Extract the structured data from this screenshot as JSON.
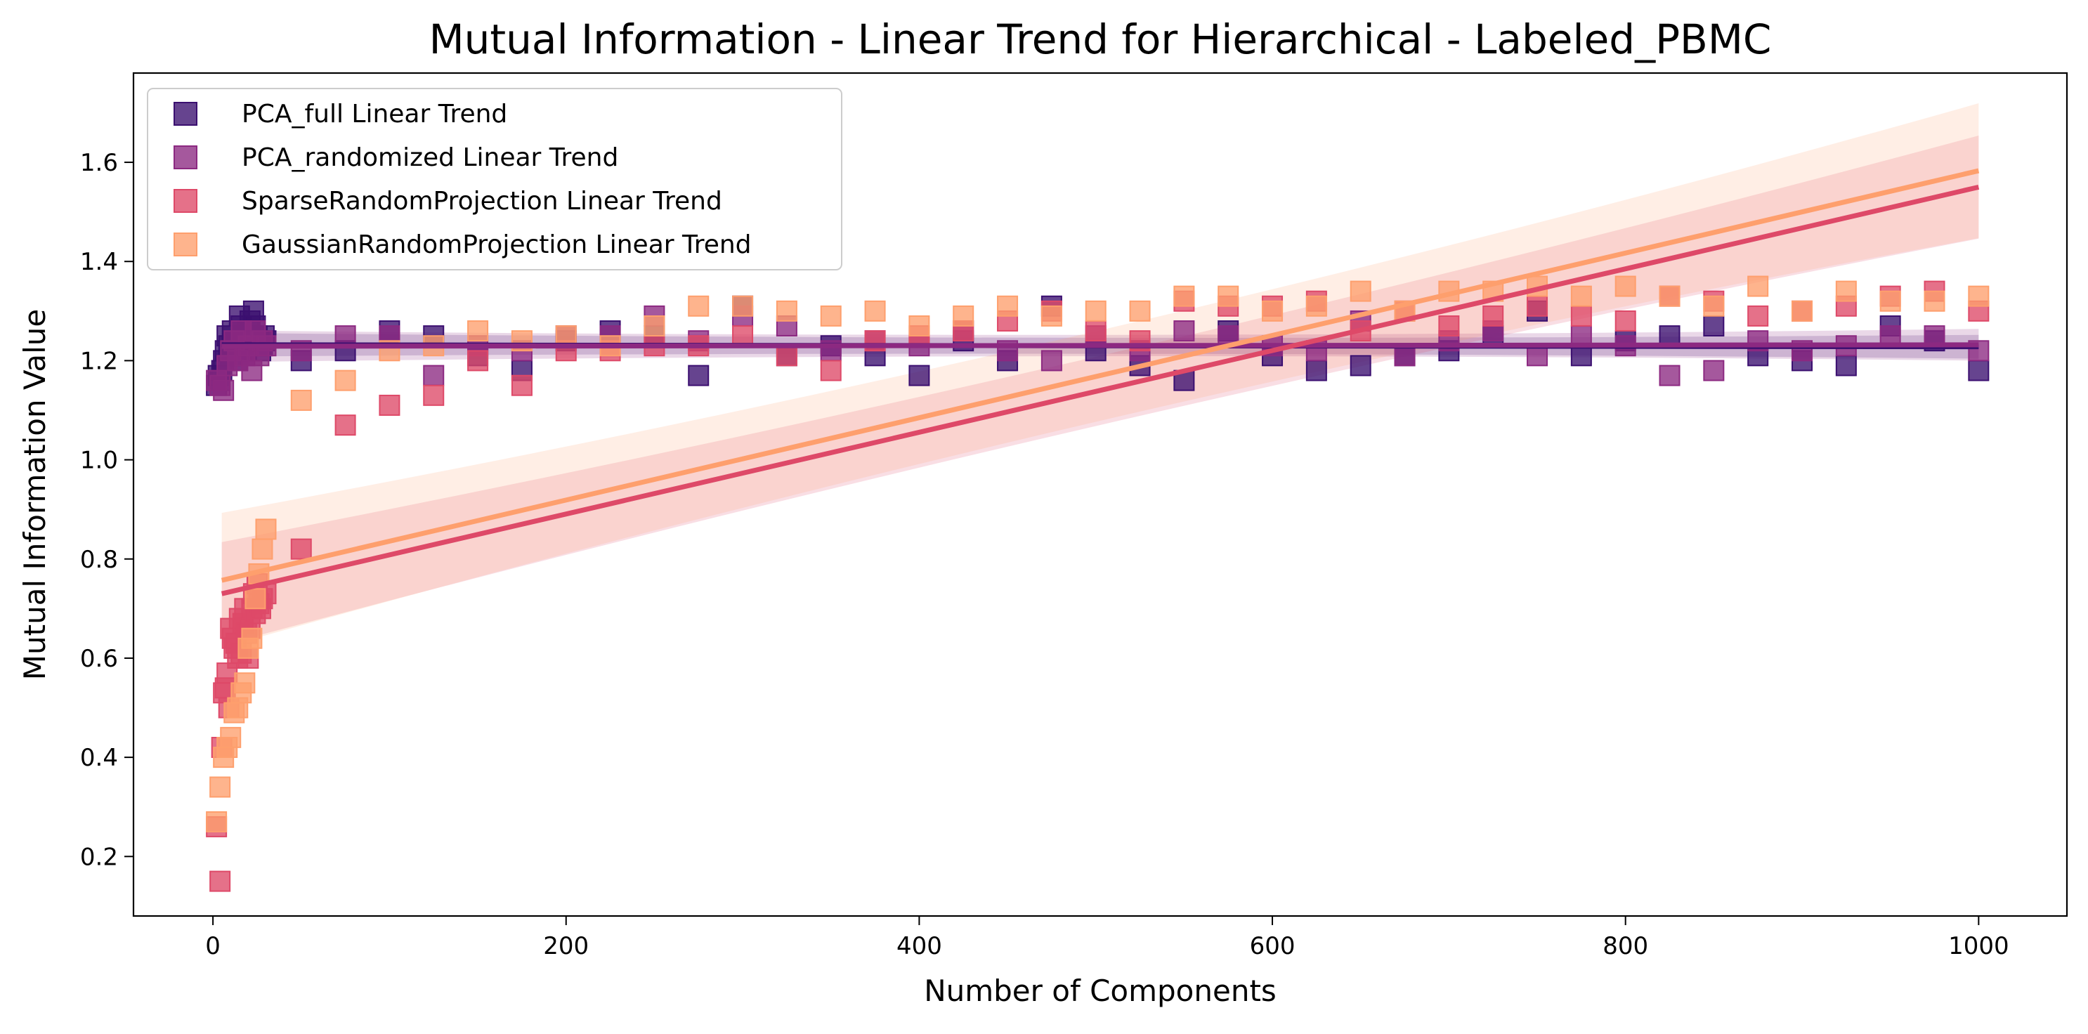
{
  "chart_data": {
    "type": "scatter",
    "title": "Mutual Information - Linear Trend for Hierarchical - Labeled_PBMC",
    "xlabel": "Number of Components",
    "ylabel": "Mutual Information Value",
    "xlim": [
      -45,
      1050
    ],
    "ylim": [
      0.08,
      1.78
    ],
    "xticks": [
      0,
      200,
      400,
      600,
      800,
      1000
    ],
    "yticks": [
      0.2,
      0.4,
      0.6,
      0.8,
      1.0,
      1.2,
      1.4,
      1.6
    ],
    "xtick_labels": [
      "0",
      "200",
      "400",
      "600",
      "800",
      "1000"
    ],
    "ytick_labels": [
      "0.2",
      "0.4",
      "0.6",
      "0.8",
      "1.0",
      "1.2",
      "1.4",
      "1.6"
    ],
    "legend_position": "upper-left",
    "grid": false,
    "series": [
      {
        "name": "PCA_full Linear Trend",
        "color": "#3b0f70",
        "points": [
          [
            2,
            1.15
          ],
          [
            3,
            1.17
          ],
          [
            4,
            1.16
          ],
          [
            5,
            1.18
          ],
          [
            6,
            1.2
          ],
          [
            7,
            1.22
          ],
          [
            8,
            1.25
          ],
          [
            9,
            1.23
          ],
          [
            10,
            1.21
          ],
          [
            11,
            1.26
          ],
          [
            12,
            1.24
          ],
          [
            13,
            1.22
          ],
          [
            14,
            1.2
          ],
          [
            15,
            1.29
          ],
          [
            16,
            1.27
          ],
          [
            17,
            1.25
          ],
          [
            18,
            1.24
          ],
          [
            19,
            1.22
          ],
          [
            20,
            1.26
          ],
          [
            21,
            1.28
          ],
          [
            22,
            1.24
          ],
          [
            23,
            1.3
          ],
          [
            24,
            1.27
          ],
          [
            25,
            1.25
          ],
          [
            26,
            1.24
          ],
          [
            27,
            1.22
          ],
          [
            28,
            1.23
          ],
          [
            29,
            1.25
          ],
          [
            30,
            1.24
          ],
          [
            50,
            1.2
          ],
          [
            75,
            1.22
          ],
          [
            100,
            1.26
          ],
          [
            125,
            1.25
          ],
          [
            150,
            1.21
          ],
          [
            175,
            1.18
          ],
          [
            200,
            1.24
          ],
          [
            225,
            1.26
          ],
          [
            250,
            1.25
          ],
          [
            275,
            1.17
          ],
          [
            300,
            1.31
          ],
          [
            325,
            1.21
          ],
          [
            350,
            1.23
          ],
          [
            375,
            1.21
          ],
          [
            400,
            1.17
          ],
          [
            425,
            1.24
          ],
          [
            450,
            1.2
          ],
          [
            475,
            1.31
          ],
          [
            500,
            1.22
          ],
          [
            525,
            1.19
          ],
          [
            550,
            1.16
          ],
          [
            575,
            1.26
          ],
          [
            600,
            1.21
          ],
          [
            625,
            1.18
          ],
          [
            650,
            1.19
          ],
          [
            675,
            1.21
          ],
          [
            700,
            1.22
          ],
          [
            725,
            1.25
          ],
          [
            750,
            1.3
          ],
          [
            775,
            1.21
          ],
          [
            800,
            1.24
          ],
          [
            825,
            1.25
          ],
          [
            850,
            1.27
          ],
          [
            875,
            1.21
          ],
          [
            900,
            1.2
          ],
          [
            925,
            1.19
          ],
          [
            950,
            1.27
          ],
          [
            975,
            1.24
          ],
          [
            1000,
            1.18
          ]
        ],
        "trend": {
          "x": [
            5,
            1000
          ],
          "y": [
            1.232,
            1.228
          ]
        },
        "band_half_width": 0.015
      },
      {
        "name": "PCA_randomized Linear Trend",
        "color": "#8c2981",
        "points": [
          [
            2,
            1.16
          ],
          [
            4,
            1.15
          ],
          [
            6,
            1.14
          ],
          [
            8,
            1.19
          ],
          [
            10,
            1.22
          ],
          [
            12,
            1.24
          ],
          [
            14,
            1.2
          ],
          [
            16,
            1.26
          ],
          [
            18,
            1.21
          ],
          [
            20,
            1.23
          ],
          [
            22,
            1.18
          ],
          [
            24,
            1.26
          ],
          [
            26,
            1.21
          ],
          [
            28,
            1.24
          ],
          [
            30,
            1.23
          ],
          [
            50,
            1.22
          ],
          [
            75,
            1.25
          ],
          [
            100,
            1.25
          ],
          [
            125,
            1.17
          ],
          [
            150,
            1.23
          ],
          [
            175,
            1.22
          ],
          [
            200,
            1.25
          ],
          [
            225,
            1.25
          ],
          [
            250,
            1.29
          ],
          [
            275,
            1.24
          ],
          [
            300,
            1.29
          ],
          [
            325,
            1.27
          ],
          [
            350,
            1.22
          ],
          [
            375,
            1.24
          ],
          [
            400,
            1.23
          ],
          [
            425,
            1.26
          ],
          [
            450,
            1.22
          ],
          [
            475,
            1.2
          ],
          [
            500,
            1.25
          ],
          [
            525,
            1.22
          ],
          [
            550,
            1.26
          ],
          [
            575,
            1.25
          ],
          [
            600,
            1.23
          ],
          [
            625,
            1.22
          ],
          [
            650,
            1.28
          ],
          [
            675,
            1.21
          ],
          [
            700,
            1.24
          ],
          [
            725,
            1.26
          ],
          [
            750,
            1.21
          ],
          [
            775,
            1.25
          ],
          [
            800,
            1.23
          ],
          [
            825,
            1.17
          ],
          [
            850,
            1.18
          ],
          [
            875,
            1.24
          ],
          [
            900,
            1.22
          ],
          [
            925,
            1.23
          ],
          [
            950,
            1.25
          ],
          [
            975,
            1.25
          ],
          [
            1000,
            1.22
          ]
        ],
        "trend": {
          "x": [
            5,
            1000
          ],
          "y": [
            1.229,
            1.232
          ]
        },
        "band_half_width": 0.02
      },
      {
        "name": "SparseRandomProjection Linear Trend",
        "color": "#de4968",
        "points": [
          [
            2,
            0.26
          ],
          [
            4,
            0.15
          ],
          [
            5,
            0.42
          ],
          [
            6,
            0.53
          ],
          [
            7,
            0.54
          ],
          [
            8,
            0.57
          ],
          [
            9,
            0.5
          ],
          [
            10,
            0.66
          ],
          [
            11,
            0.64
          ],
          [
            12,
            0.62
          ],
          [
            13,
            0.63
          ],
          [
            14,
            0.6
          ],
          [
            15,
            0.68
          ],
          [
            16,
            0.61
          ],
          [
            17,
            0.67
          ],
          [
            18,
            0.7
          ],
          [
            19,
            0.65
          ],
          [
            20,
            0.6
          ],
          [
            21,
            0.66
          ],
          [
            22,
            0.7
          ],
          [
            23,
            0.73
          ],
          [
            24,
            0.69
          ],
          [
            25,
            0.75
          ],
          [
            26,
            0.71
          ],
          [
            27,
            0.7
          ],
          [
            28,
            0.72
          ],
          [
            30,
            0.73
          ],
          [
            50,
            0.82
          ],
          [
            75,
            1.07
          ],
          [
            100,
            1.11
          ],
          [
            125,
            1.13
          ],
          [
            150,
            1.2
          ],
          [
            175,
            1.15
          ],
          [
            200,
            1.22
          ],
          [
            225,
            1.22
          ],
          [
            250,
            1.23
          ],
          [
            275,
            1.23
          ],
          [
            300,
            1.25
          ],
          [
            325,
            1.21
          ],
          [
            350,
            1.18
          ],
          [
            375,
            1.24
          ],
          [
            400,
            1.25
          ],
          [
            425,
            1.26
          ],
          [
            450,
            1.28
          ],
          [
            475,
            1.3
          ],
          [
            500,
            1.26
          ],
          [
            525,
            1.24
          ],
          [
            550,
            1.32
          ],
          [
            575,
            1.31
          ],
          [
            600,
            1.31
          ],
          [
            625,
            1.32
          ],
          [
            650,
            1.26
          ],
          [
            675,
            1.3
          ],
          [
            700,
            1.27
          ],
          [
            725,
            1.29
          ],
          [
            750,
            1.31
          ],
          [
            775,
            1.29
          ],
          [
            800,
            1.28
          ],
          [
            825,
            1.33
          ],
          [
            850,
            1.32
          ],
          [
            875,
            1.29
          ],
          [
            900,
            1.3
          ],
          [
            925,
            1.31
          ],
          [
            950,
            1.33
          ],
          [
            975,
            1.34
          ],
          [
            1000,
            1.3
          ]
        ],
        "trend": {
          "x": [
            5,
            1000
          ],
          "y": [
            0.73,
            1.55
          ]
        },
        "band_half_width": 0.065
      },
      {
        "name": "GaussianRandomProjection Linear Trend",
        "color": "#fe9f6d",
        "points": [
          [
            2,
            0.27
          ],
          [
            4,
            0.34
          ],
          [
            6,
            0.4
          ],
          [
            8,
            0.42
          ],
          [
            10,
            0.44
          ],
          [
            12,
            0.49
          ],
          [
            14,
            0.5
          ],
          [
            16,
            0.53
          ],
          [
            18,
            0.55
          ],
          [
            20,
            0.62
          ],
          [
            22,
            0.64
          ],
          [
            24,
            0.72
          ],
          [
            26,
            0.77
          ],
          [
            28,
            0.82
          ],
          [
            30,
            0.86
          ],
          [
            50,
            1.12
          ],
          [
            75,
            1.16
          ],
          [
            100,
            1.22
          ],
          [
            125,
            1.23
          ],
          [
            150,
            1.26
          ],
          [
            175,
            1.24
          ],
          [
            200,
            1.25
          ],
          [
            225,
            1.23
          ],
          [
            250,
            1.27
          ],
          [
            275,
            1.31
          ],
          [
            300,
            1.31
          ],
          [
            325,
            1.3
          ],
          [
            350,
            1.29
          ],
          [
            375,
            1.3
          ],
          [
            400,
            1.27
          ],
          [
            425,
            1.29
          ],
          [
            450,
            1.31
          ],
          [
            475,
            1.29
          ],
          [
            500,
            1.3
          ],
          [
            525,
            1.3
          ],
          [
            550,
            1.33
          ],
          [
            575,
            1.33
          ],
          [
            600,
            1.3
          ],
          [
            625,
            1.31
          ],
          [
            650,
            1.34
          ],
          [
            675,
            1.3
          ],
          [
            700,
            1.34
          ],
          [
            725,
            1.34
          ],
          [
            750,
            1.35
          ],
          [
            775,
            1.33
          ],
          [
            800,
            1.35
          ],
          [
            825,
            1.33
          ],
          [
            850,
            1.31
          ],
          [
            875,
            1.35
          ],
          [
            900,
            1.3
          ],
          [
            925,
            1.34
          ],
          [
            950,
            1.32
          ],
          [
            975,
            1.32
          ],
          [
            1000,
            1.33
          ]
        ],
        "trend": {
          "x": [
            5,
            1000
          ],
          "y": [
            0.757,
            1.583
          ]
        },
        "band_half_width": 0.085
      }
    ]
  }
}
